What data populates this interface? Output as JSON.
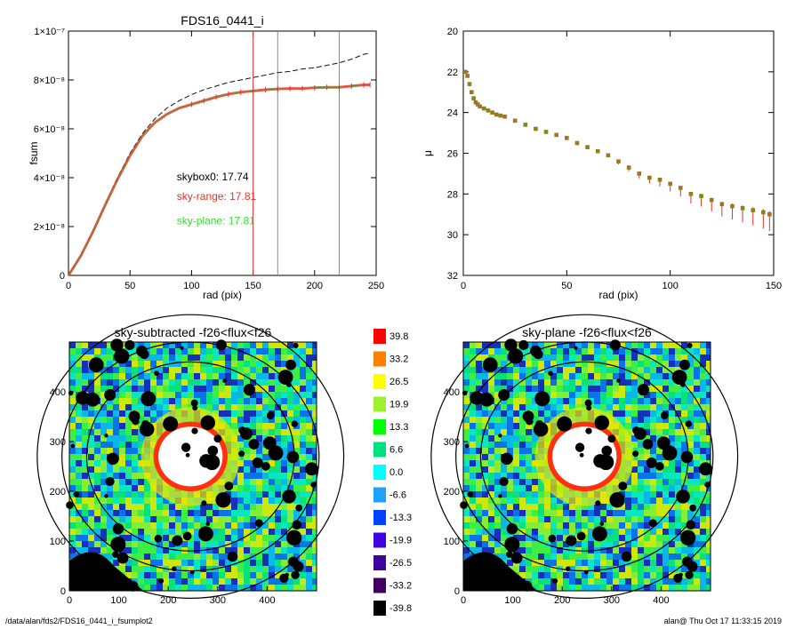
{
  "footer": {
    "left": "/data/alan/fds2/FDS16_0441_i_fsumplot2",
    "right": "alan@  Thu Oct 17 11:33:15 2019"
  },
  "colors": {
    "black": "#000000",
    "red": "#e8312a",
    "green": "#33dd33",
    "dash": "#111111",
    "grey": "#888888"
  },
  "chart_data": [
    {
      "type": "line",
      "title": "FDS16_0441_i",
      "xlabel": "rad (pix)",
      "ylabel": "fsum",
      "xlim": [
        0,
        250
      ],
      "ylim": [
        0,
        1e-07
      ],
      "xticks": [
        "0",
        "50",
        "100",
        "150",
        "200",
        "250"
      ],
      "yticks": [
        "0",
        "2×10⁻⁸",
        "4×10⁻⁸",
        "6×10⁻⁸",
        "8×10⁻⁸",
        "1×10⁻⁷"
      ],
      "vlines": [
        {
          "x": 150,
          "color": "red"
        },
        {
          "x": 170,
          "color": "grey"
        },
        {
          "x": 220,
          "color": "grey"
        }
      ],
      "annotations": [
        {
          "text": "skybox0: 17.74",
          "color": "black"
        },
        {
          "text": "sky-range: 17.81",
          "color": "red"
        },
        {
          "text": "sky-plane: 17.81",
          "color": "green"
        }
      ],
      "series": [
        {
          "style": "dashed",
          "x": [
            0,
            10,
            20,
            30,
            40,
            50,
            60,
            70,
            80,
            90,
            100,
            110,
            120,
            130,
            140,
            150,
            160,
            170,
            180,
            190,
            200,
            210,
            220,
            230,
            240,
            245
          ],
          "y": [
            0,
            8e-09,
            1.8e-08,
            2.9e-08,
            4e-08,
            5e-08,
            5.8e-08,
            6.4e-08,
            6.85e-08,
            7.15e-08,
            7.4e-08,
            7.6e-08,
            7.75e-08,
            7.9e-08,
            8e-08,
            8.1e-08,
            8.2e-08,
            8.3e-08,
            8.35e-08,
            8.45e-08,
            8.5e-08,
            8.6e-08,
            8.7e-08,
            8.85e-08,
            9.05e-08,
            9.1e-08
          ]
        },
        {
          "style": "solid",
          "x": [
            0,
            10,
            20,
            30,
            40,
            50,
            60,
            70,
            80,
            90,
            100,
            110,
            120,
            130,
            140,
            150,
            160,
            170,
            180,
            190,
            200,
            210,
            220,
            230,
            240,
            245
          ],
          "y": [
            0,
            8e-09,
            1.8e-08,
            2.9e-08,
            3.95e-08,
            4.9e-08,
            5.7e-08,
            6.25e-08,
            6.6e-08,
            6.85e-08,
            7e-08,
            7.15e-08,
            7.3e-08,
            7.42e-08,
            7.5e-08,
            7.55e-08,
            7.6e-08,
            7.63e-08,
            7.65e-08,
            7.65e-08,
            7.68e-08,
            7.7e-08,
            7.7e-08,
            7.75e-08,
            7.8e-08,
            7.8e-08
          ]
        }
      ]
    },
    {
      "type": "scatter",
      "title": "",
      "xlabel": "rad (pix)",
      "ylabel": "μ",
      "xlim": [
        0,
        150
      ],
      "ylim": [
        32,
        20
      ],
      "xticks": [
        "0",
        "50",
        "100",
        "150"
      ],
      "yticks": [
        "20",
        "22",
        "24",
        "26",
        "28",
        "30",
        "32"
      ],
      "series": [
        {
          "name": "",
          "x": [
            1,
            2,
            3,
            4,
            5,
            6,
            7,
            8,
            10,
            12,
            14,
            16,
            18,
            20,
            25,
            30,
            35,
            40,
            45,
            50,
            55,
            60,
            65,
            70,
            75,
            80,
            85,
            90,
            95,
            100,
            105,
            110,
            115,
            120,
            125,
            130,
            135,
            140,
            145,
            148
          ],
          "y": [
            22.0,
            22.2,
            22.6,
            23.0,
            23.3,
            23.5,
            23.6,
            23.7,
            23.8,
            23.9,
            24.0,
            24.1,
            24.15,
            24.2,
            24.4,
            24.6,
            24.8,
            24.95,
            25.1,
            25.25,
            25.5,
            25.7,
            25.9,
            26.1,
            26.4,
            26.7,
            27.0,
            27.2,
            27.3,
            27.5,
            27.7,
            28.0,
            28.1,
            28.3,
            28.5,
            28.6,
            28.7,
            28.8,
            28.9,
            29.0
          ]
        }
      ]
    },
    {
      "type": "heatmap",
      "title": "sky-subtracted -f26<flux<f26",
      "xlim": [
        0,
        500
      ],
      "ylim": [
        0,
        500
      ],
      "xticks": [
        "0",
        "100",
        "200",
        "300",
        "400"
      ],
      "yticks": [
        "0",
        "100",
        "200",
        "300",
        "400"
      ]
    },
    {
      "type": "heatmap",
      "title": "sky-plane -f26<flux<f26",
      "xlim": [
        0,
        500
      ],
      "ylim": [
        0,
        500
      ],
      "xticks": [
        "0",
        "100",
        "200",
        "300",
        "400"
      ],
      "yticks": [
        "0",
        "100",
        "200",
        "300",
        "400"
      ]
    },
    {
      "type": "colorbar",
      "labels": [
        "39.8",
        "33.2",
        "26.5",
        "19.9",
        "13.3",
        "6.6",
        "0.0",
        "-6.6",
        "-13.3",
        "-19.9",
        "-26.5",
        "-33.2",
        "-39.8"
      ],
      "colors": [
        "#ff0000",
        "#ff8000",
        "#ffff00",
        "#a0f030",
        "#00ff00",
        "#00e080",
        "#00ffff",
        "#20a0ff",
        "#0040ff",
        "#4000e0",
        "#4000a0",
        "#400060",
        "#000000"
      ]
    }
  ]
}
